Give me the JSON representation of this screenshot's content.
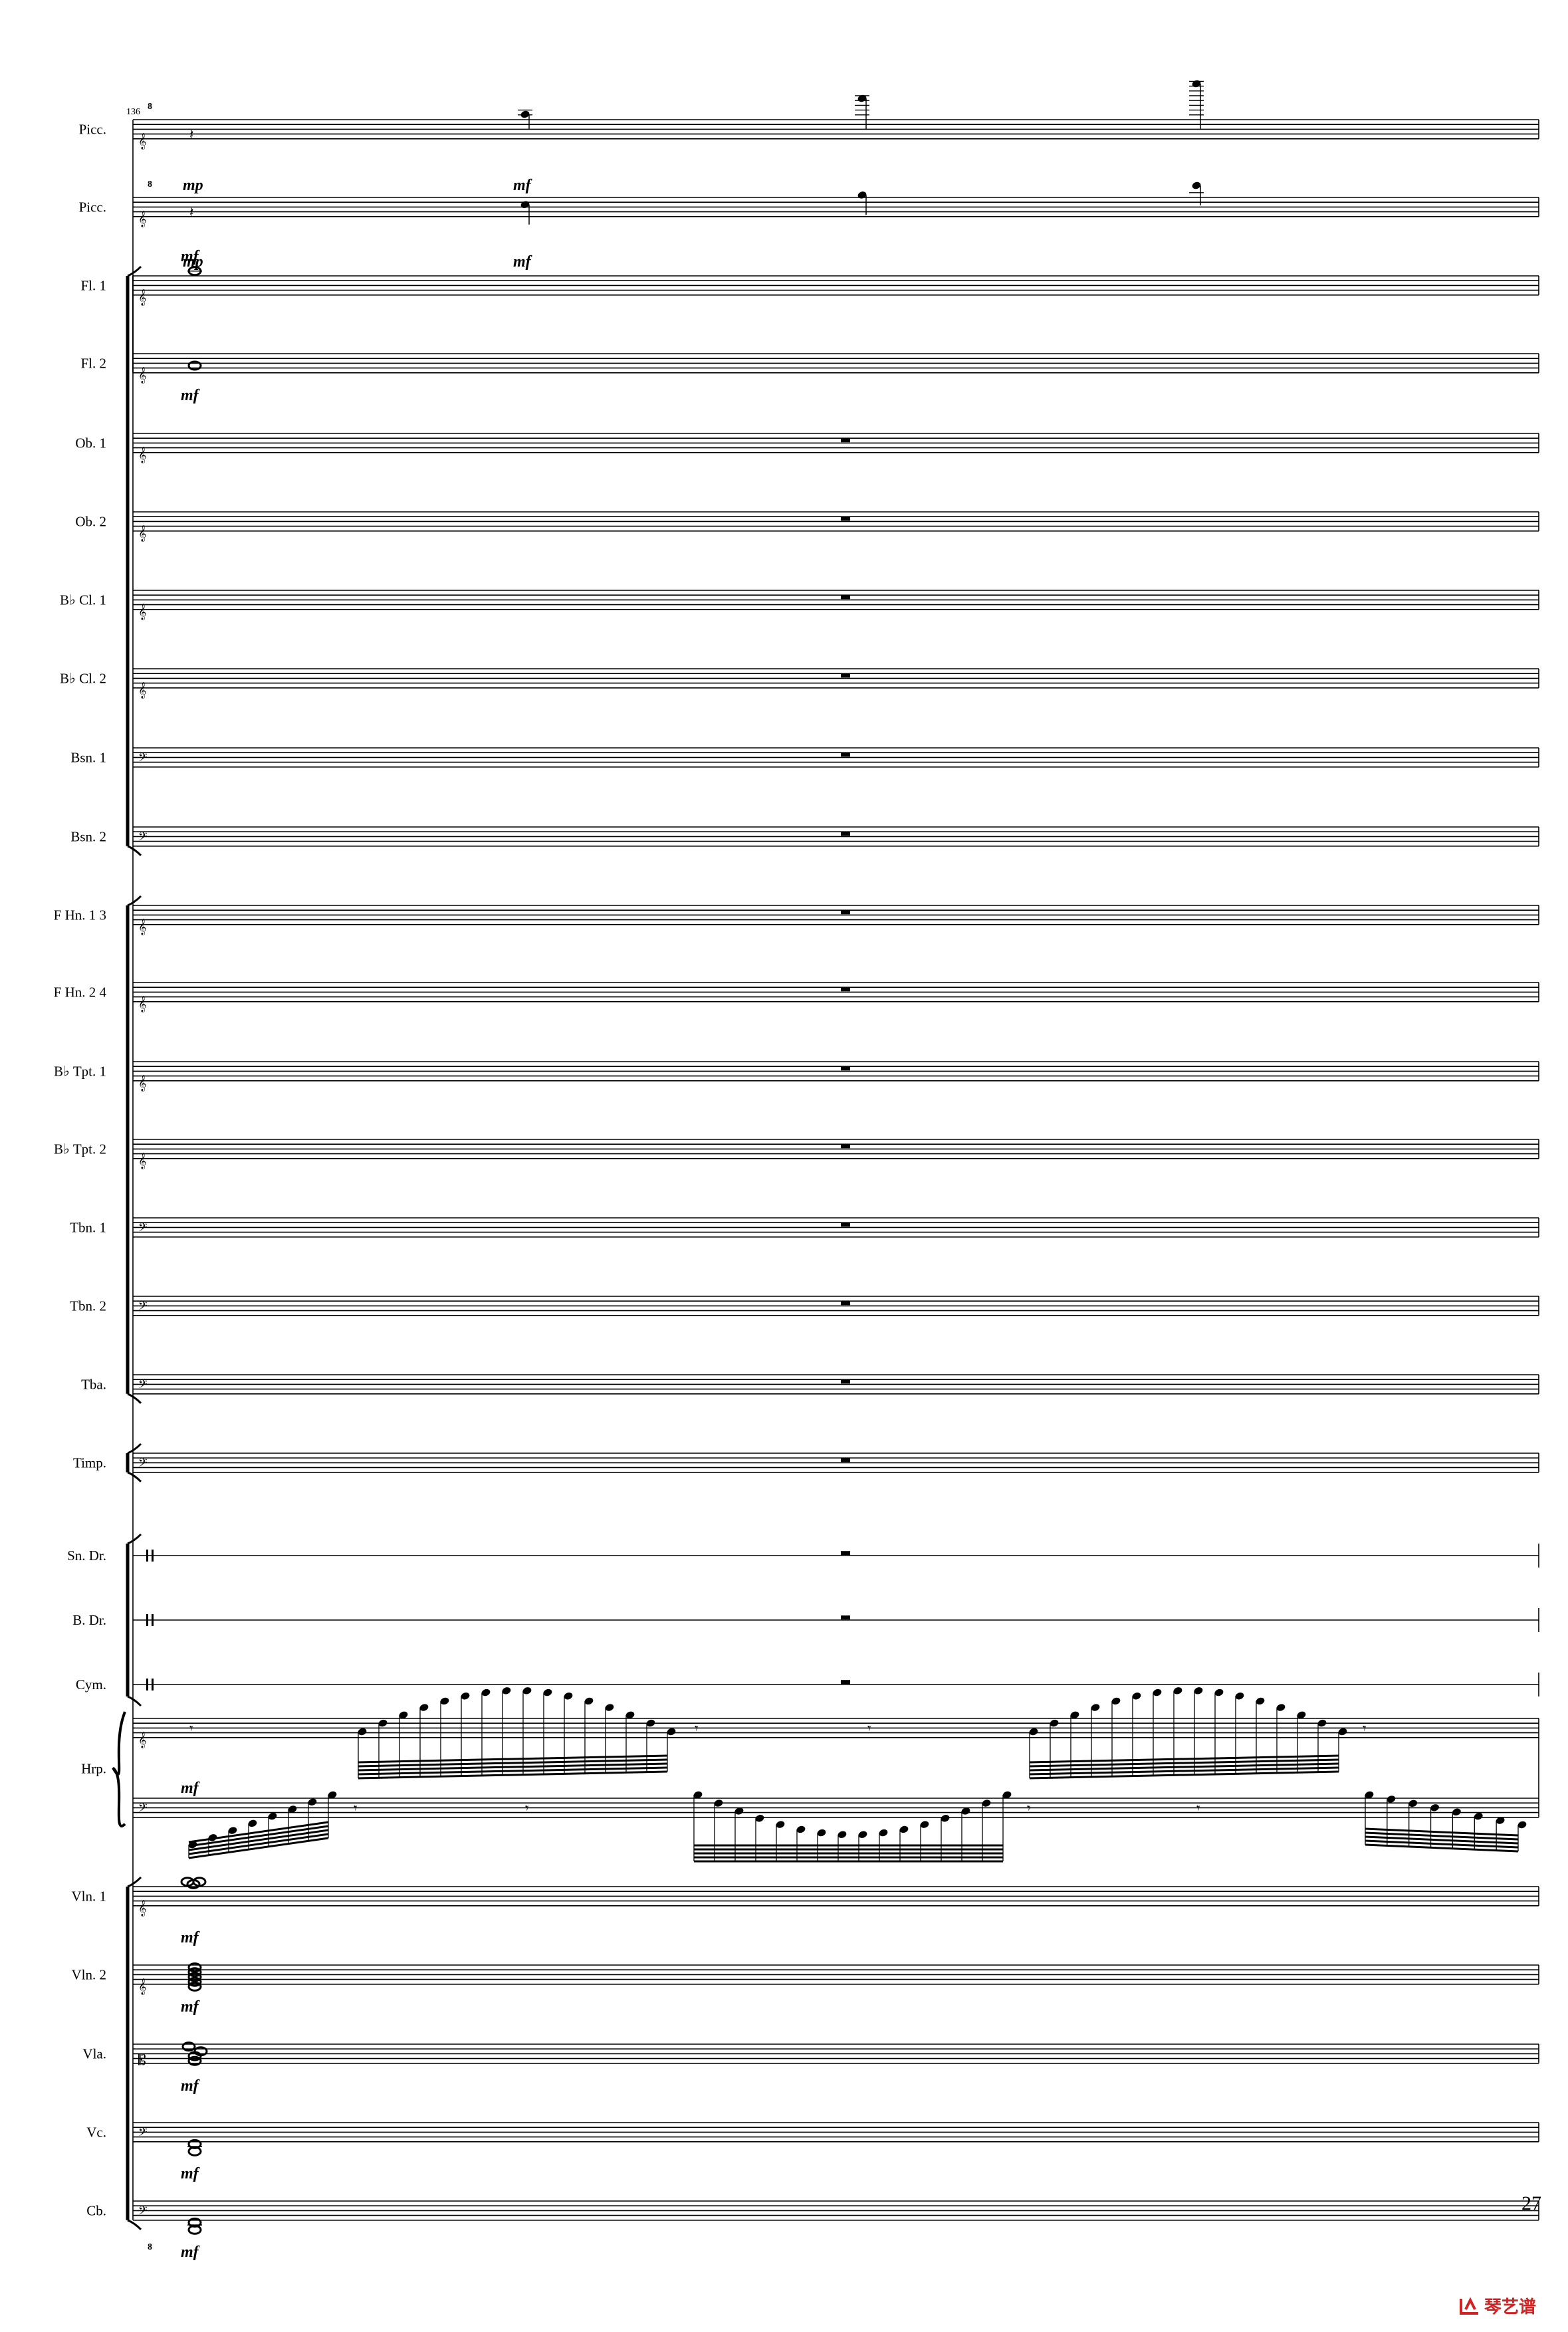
{
  "score": {
    "measure_number": "136",
    "page_number": "27",
    "instruments": [
      {
        "name": "Picc.",
        "clef": "treble8",
        "kind": "picc1"
      },
      {
        "name": "Picc.",
        "clef": "treble8",
        "kind": "picc2"
      },
      {
        "name": "Fl. 1",
        "clef": "treble",
        "kind": "whole_a"
      },
      {
        "name": "Fl. 2",
        "clef": "treble",
        "kind": "whole_b"
      },
      {
        "name": "Ob. 1",
        "clef": "treble",
        "kind": "rest"
      },
      {
        "name": "Ob. 2",
        "clef": "treble",
        "kind": "rest"
      },
      {
        "name": "B♭ Cl. 1",
        "clef": "treble",
        "kind": "rest"
      },
      {
        "name": "B♭ Cl. 2",
        "clef": "treble",
        "kind": "rest"
      },
      {
        "name": "Bsn. 1",
        "clef": "bass",
        "kind": "rest"
      },
      {
        "name": "Bsn. 2",
        "clef": "bass",
        "kind": "rest"
      },
      {
        "name": "F Hn. 1 3",
        "clef": "treble",
        "kind": "rest"
      },
      {
        "name": "F Hn. 2 4",
        "clef": "treble",
        "kind": "rest"
      },
      {
        "name": "B♭ Tpt. 1",
        "clef": "treble",
        "kind": "rest"
      },
      {
        "name": "B♭ Tpt. 2",
        "clef": "treble",
        "kind": "rest"
      },
      {
        "name": "Tbn. 1",
        "clef": "bass",
        "kind": "rest"
      },
      {
        "name": "Tbn. 2",
        "clef": "bass",
        "kind": "rest"
      },
      {
        "name": "Tba.",
        "clef": "bass",
        "kind": "rest"
      },
      {
        "name": "Timp.",
        "clef": "bass",
        "kind": "rest"
      },
      {
        "name": "Sn. Dr.",
        "clef": "perc",
        "kind": "rest"
      },
      {
        "name": "B. Dr.",
        "clef": "perc",
        "kind": "rest"
      },
      {
        "name": "Cym.",
        "clef": "perc",
        "kind": "rest"
      },
      {
        "name": "Hrp.",
        "clef": "grand",
        "kind": "harp"
      },
      {
        "name": "Vln. 1",
        "clef": "treble",
        "kind": "chord_vln1"
      },
      {
        "name": "Vln. 2",
        "clef": "treble",
        "kind": "chord_vln2"
      },
      {
        "name": "Vla.",
        "clef": "alto",
        "kind": "chord_vla"
      },
      {
        "name": "Vc.",
        "clef": "bass",
        "kind": "chord_low"
      },
      {
        "name": "Cb.",
        "clef": "bass8",
        "kind": "chord_low"
      }
    ],
    "dynamics": {
      "picc1_start": "mp",
      "picc1_note": "mf",
      "picc2_start": "mp",
      "picc2_note": "mf",
      "fl1": "mf",
      "fl2": "mf",
      "harp": "mf",
      "vln1": "mf",
      "vln2": "mf",
      "vla": "mf",
      "vc": "mf",
      "cb": "mf"
    },
    "ottava_mark": "8"
  },
  "watermark": {
    "text": "琴艺谱",
    "color": "#d32020"
  }
}
